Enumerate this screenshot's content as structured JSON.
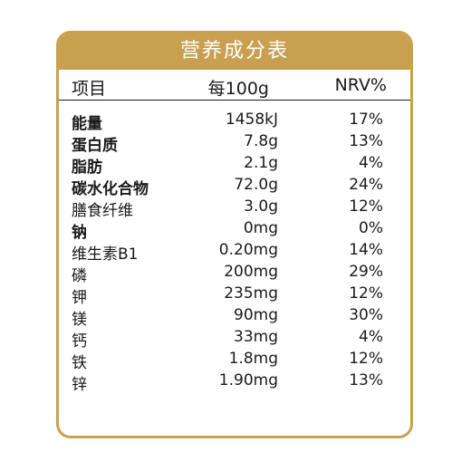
{
  "title": "营养成分表",
  "columns": {
    "item": "项目",
    "per100g": "每100g",
    "nrv": "NRV%"
  },
  "colors": {
    "accent": "#c8a050",
    "text": "#1a1a1a"
  },
  "rows": [
    {
      "name": "能量",
      "value": "1458kJ",
      "nrv": "17%",
      "bold": true
    },
    {
      "name": "蛋白质",
      "value": "7.8g",
      "nrv": "13%",
      "bold": true
    },
    {
      "name": "脂肪",
      "value": "2.1g",
      "nrv": "4%",
      "bold": true
    },
    {
      "name": "碳水化合物",
      "value": "72.0g",
      "nrv": "24%",
      "bold": true
    },
    {
      "name": "膳食纤维",
      "value": "3.0g",
      "nrv": "12%",
      "bold": false
    },
    {
      "name": "钠",
      "value": "0mg",
      "nrv": "0%",
      "bold": true
    },
    {
      "name": "维生素B1",
      "value": "0.20mg",
      "nrv": "14%",
      "bold": false
    },
    {
      "name": "磷",
      "value": "200mg",
      "nrv": "29%",
      "bold": false
    },
    {
      "name": "钾",
      "value": "235mg",
      "nrv": "12%",
      "bold": false
    },
    {
      "name": "镁",
      "value": "90mg",
      "nrv": "30%",
      "bold": false
    },
    {
      "name": "钙",
      "value": "33mg",
      "nrv": "4%",
      "bold": false
    },
    {
      "name": "铁",
      "value": "1.8mg",
      "nrv": "12%",
      "bold": false
    },
    {
      "name": "锌",
      "value": "1.90mg",
      "nrv": "13%",
      "bold": false
    }
  ]
}
